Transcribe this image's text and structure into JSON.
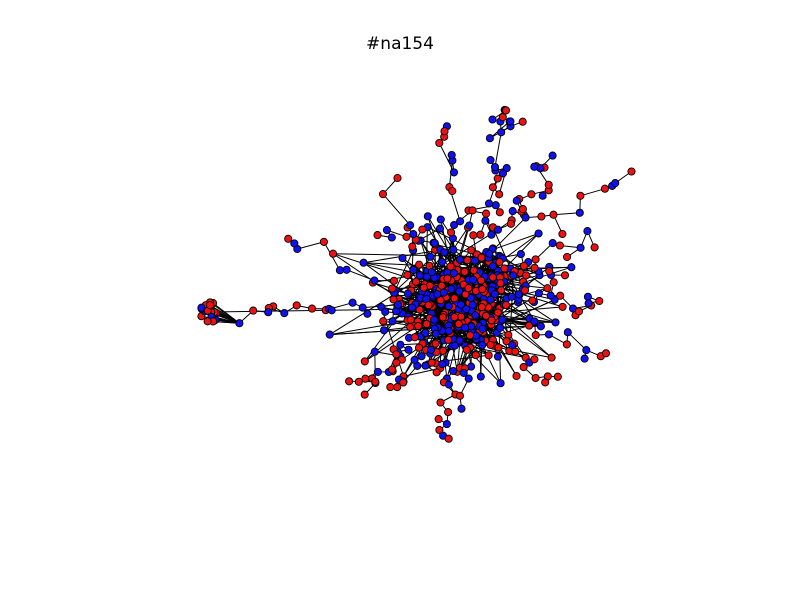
{
  "figure": {
    "title": "#na154"
  },
  "graph": {
    "node_colors": {
      "red": "#ee1111",
      "blue": "#1111ee"
    },
    "edge_color": "#000000",
    "node_outline": "#000000"
  }
}
